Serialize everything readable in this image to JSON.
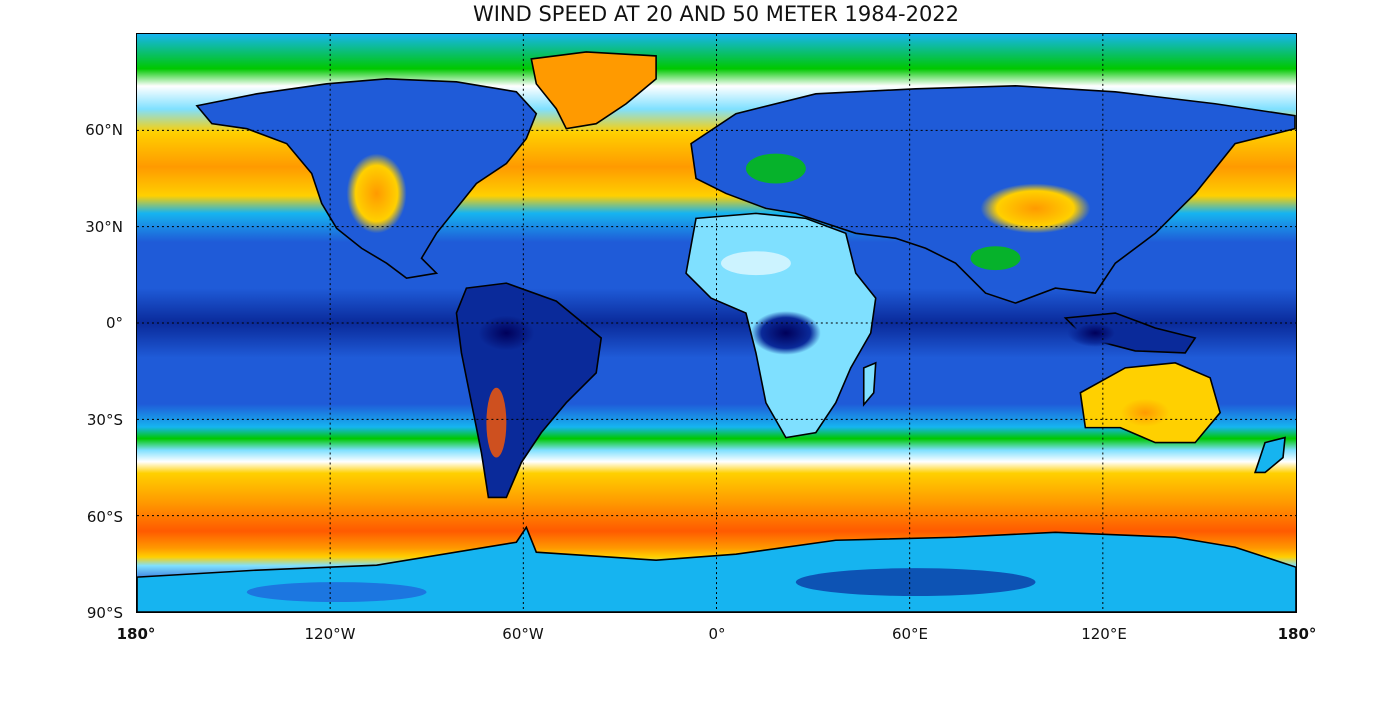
{
  "map": {
    "title": "WIND SPEED AT 20 AND 50 METER 1984-2022",
    "projection": "equirectangular",
    "lat_ticks": [
      "60°N",
      "30°N",
      "0°",
      "30°S",
      "60°S",
      "90°S"
    ],
    "lon_ticks": [
      "180°",
      "120°W",
      "60°W",
      "0°",
      "60°E",
      "120°E",
      "180°"
    ],
    "gridlines": "dotted",
    "colormap": [
      "#00005a",
      "#0000c8",
      "#0050ff",
      "#00b4ff",
      "#ffffff",
      "#00c800",
      "#ffe600",
      "#ffa000",
      "#ff5a00",
      "#dc0000"
    ],
    "colors": {
      "deep_blue": "#0a2a9a",
      "mid_blue": "#1f5bd8",
      "light_blue": "#16b4f0",
      "cyan": "#7fe0ff",
      "green": "#00c800",
      "yellow": "#ffd000",
      "orange": "#ff9a00",
      "red_orange": "#ff5a00"
    }
  }
}
